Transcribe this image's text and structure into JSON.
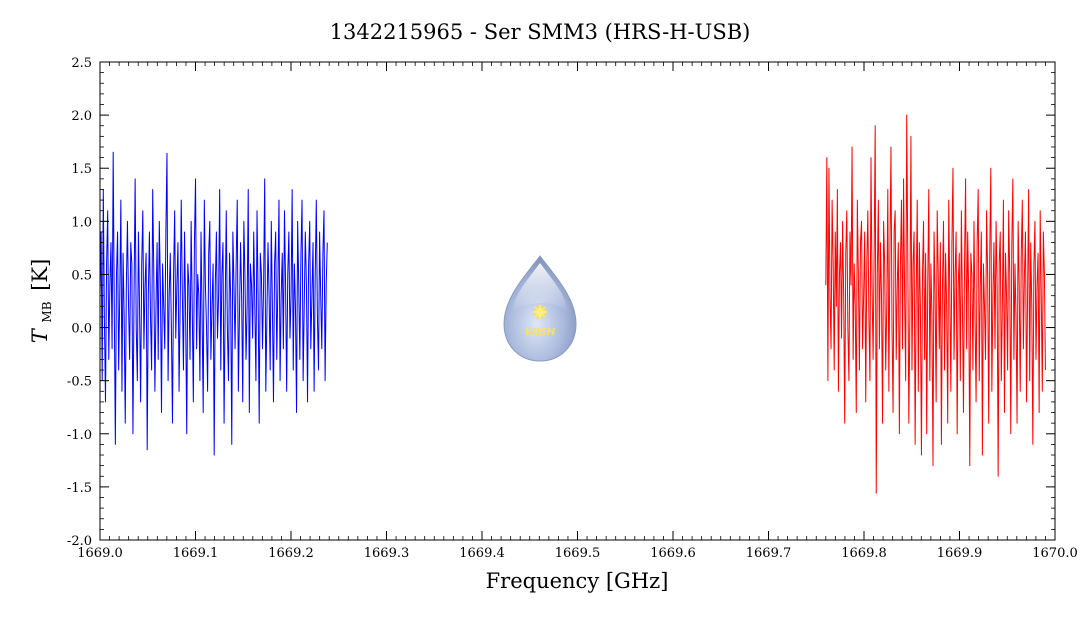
{
  "chart_data": {
    "type": "line",
    "title": "1342215965 - Ser SMM3 (HRS-H-USB)",
    "xlabel": "Frequency [GHz]",
    "ylabel_main": "T",
    "ylabel_sub": "MB",
    "ylabel_unit": "[K]",
    "xlim": [
      1669.0,
      1670.0
    ],
    "ylim": [
      -2.0,
      2.5
    ],
    "x_ticks": [
      "1669.0",
      "1669.1",
      "1669.2",
      "1669.3",
      "1669.4",
      "1669.5",
      "1669.6",
      "1669.7",
      "1669.8",
      "1669.9",
      "1670.0"
    ],
    "y_ticks": [
      "-2.0",
      "-1.5",
      "-1.0",
      "-0.5",
      "0.0",
      "0.5",
      "1.0",
      "1.5",
      "2.0",
      "2.5"
    ],
    "grid": false,
    "series": [
      {
        "color": "#0000ff",
        "x_range": [
          1669.0,
          1669.238
        ],
        "values": [
          0.3,
          0.9,
          -0.5,
          1.3,
          0.1,
          -0.7,
          0.6,
          1.1,
          -0.3,
          0.4,
          0.8,
          -0.2,
          1.65,
          0.2,
          -1.1,
          0.5,
          0.9,
          -0.4,
          0.3,
          1.2,
          -0.6,
          0.7,
          0.1,
          -0.9,
          0.4,
          1.0,
          0.2,
          -0.3,
          0.8,
          0.6,
          -1.0,
          0.3,
          1.4,
          0.0,
          -0.5,
          0.9,
          0.2,
          -0.7,
          0.6,
          1.1,
          -0.2,
          0.4,
          0.7,
          -1.15,
          0.3,
          0.9,
          0.1,
          -0.4,
          1.3,
          0.5,
          -0.6,
          0.2,
          0.8,
          -0.3,
          1.0,
          0.4,
          -0.8,
          0.6,
          0.2,
          -0.2,
          0.9,
          1.64,
          -0.5,
          0.3,
          0.7,
          0.0,
          -0.9,
          0.5,
          1.1,
          -0.1,
          0.4,
          0.8,
          -0.6,
          0.2,
          1.2,
          0.3,
          -0.4,
          0.9,
          0.1,
          -1.0,
          0.6,
          0.4,
          -0.3,
          1.0,
          0.2,
          -0.7,
          0.8,
          1.4,
          -0.2,
          0.5,
          0.3,
          -0.5,
          0.9,
          0.1,
          -0.8,
          1.2,
          0.4,
          0.0,
          -0.6,
          0.7,
          1.0,
          -0.3,
          0.2,
          0.6,
          -1.2,
          0.4,
          0.9,
          -0.1,
          0.3,
          1.3,
          -0.4,
          0.5,
          0.8,
          -0.9,
          0.2,
          1.1,
          0.0,
          -0.5,
          0.7,
          0.3,
          -1.1,
          0.9,
          0.4,
          -0.2,
          0.6,
          1.2,
          -0.6,
          0.1,
          0.8,
          0.3,
          -0.7,
          1.0,
          0.5,
          -0.3,
          0.2,
          1.3,
          -0.8,
          0.6,
          0.4,
          -0.1,
          0.9,
          0.2,
          -0.5,
          1.1,
          0.3,
          -0.9,
          0.7,
          0.5,
          -0.2,
          0.4,
          1.4,
          -0.6,
          0.1,
          0.8,
          0.3,
          -0.4,
          1.0,
          0.2,
          -0.7,
          0.6,
          0.9,
          -0.3,
          0.4,
          1.2,
          -0.5,
          0.3,
          0.7,
          -0.2,
          1.1,
          0.4,
          -0.6,
          0.5,
          0.9,
          -0.1,
          0.3,
          1.3,
          -0.4,
          0.6,
          0.2,
          -0.8,
          1.0,
          0.4,
          -0.3,
          0.7,
          1.2,
          -0.5,
          0.2,
          0.9,
          0.4,
          -0.7,
          0.6,
          1.0,
          -0.2,
          0.3,
          0.8,
          -0.6,
          0.5,
          1.2,
          0.1,
          -0.4,
          0.9,
          0.3,
          -0.2,
          0.7,
          1.1,
          -0.5,
          0.4,
          0.8
        ]
      },
      {
        "color": "#ff0000",
        "x_range": [
          1669.76,
          1669.99
        ],
        "values": [
          0.4,
          1.6,
          -0.5,
          1.5,
          0.3,
          -0.2,
          1.2,
          0.6,
          -0.4,
          0.9,
          0.2,
          1.3,
          -0.6,
          0.5,
          0.8,
          -0.1,
          1.0,
          0.3,
          -0.9,
          0.7,
          1.1,
          0.0,
          -0.5,
          0.9,
          0.4,
          1.7,
          -0.3,
          0.6,
          0.2,
          -0.8,
          1.2,
          0.5,
          -0.4,
          0.8,
          1.0,
          -0.2,
          0.3,
          0.9,
          -0.7,
          0.6,
          1.1,
          0.1,
          -0.5,
          1.6,
          0.4,
          -0.3,
          0.7,
          1.9,
          -1.56,
          0.5,
          1.2,
          -0.2,
          0.8,
          0.3,
          -0.9,
          1.0,
          0.6,
          -0.4,
          0.2,
          1.3,
          -0.6,
          0.7,
          1.7,
          0.0,
          -0.8,
          0.9,
          1.1,
          -0.3,
          0.4,
          0.8,
          -1.0,
          0.6,
          1.2,
          -0.2,
          1.4,
          0.3,
          -0.5,
          2.0,
          0.7,
          -0.9,
          0.1,
          1.8,
          -0.4,
          0.6,
          0.9,
          -1.1,
          0.3,
          1.2,
          -0.6,
          0.8,
          0.2,
          -1.2,
          0.5,
          1.0,
          -0.3,
          0.7,
          -1.0,
          0.4,
          1.3,
          -0.5,
          0.6,
          0.1,
          -1.3,
          0.9,
          0.3,
          -0.7,
          1.1,
          0.5,
          -0.2,
          0.8,
          -1.1,
          0.4,
          1.0,
          -0.4,
          0.7,
          0.2,
          -0.9,
          1.2,
          0.3,
          -0.6,
          0.8,
          1.5,
          -0.3,
          0.5,
          0.9,
          -1.0,
          0.4,
          0.7,
          -0.5,
          1.1,
          0.2,
          -0.8,
          0.6,
          1.4,
          -0.2,
          0.9,
          0.3,
          -1.3,
          0.7,
          0.5,
          -0.4,
          1.0,
          0.1,
          -0.7,
          0.8,
          1.3,
          -0.5,
          0.4,
          0.9,
          -1.2,
          0.6,
          0.2,
          -0.3,
          1.1,
          0.5,
          -0.9,
          0.7,
          1.5,
          -0.6,
          0.3,
          0.8,
          -0.2,
          1.0,
          0.4,
          -1.4,
          0.6,
          0.9,
          -0.5,
          0.2,
          1.2,
          -0.8,
          0.7,
          0.3,
          -0.4,
          1.1,
          0.5,
          -1.0,
          0.8,
          1.4,
          -0.3,
          0.6,
          0.1,
          -0.9,
          1.0,
          0.4,
          -0.6,
          0.7,
          1.2,
          -0.2,
          0.5,
          0.9,
          -0.7,
          0.3,
          1.3,
          -0.5,
          0.8,
          0.2,
          -1.1,
          0.6,
          1.0,
          -0.3,
          0.4,
          0.7,
          -0.8,
          1.1,
          0.3,
          -0.6,
          0.9,
          0.5,
          -0.4
        ]
      }
    ]
  },
  "logo": {
    "text": "WISH",
    "icon": "wish-droplet-logo"
  }
}
